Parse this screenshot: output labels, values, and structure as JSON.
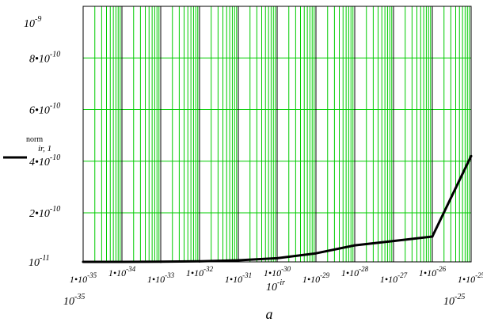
{
  "chart_data": {
    "type": "line",
    "x_scale": "log",
    "y_scale": "linear",
    "grid": true,
    "grid_color": "#00cc00",
    "major_grid_color": "#000000",
    "line_color": "#000000",
    "xlim": [
      1e-35,
      1e-25
    ],
    "ylim": [
      1e-11,
      1e-09
    ],
    "x_tick_labels": [
      {
        "mant": "1•10",
        "exp": "-35"
      },
      {
        "mant": "1•10",
        "exp": "-34"
      },
      {
        "mant": "1•10",
        "exp": "-33"
      },
      {
        "mant": "1•10",
        "exp": "-32"
      },
      {
        "mant": "1•10",
        "exp": "-31"
      },
      {
        "mant": "1•10",
        "exp": "-30"
      },
      {
        "mant": "1•10",
        "exp": "-29"
      },
      {
        "mant": "1•10",
        "exp": "-28"
      },
      {
        "mant": "1•10",
        "exp": "-27"
      },
      {
        "mant": "1•10",
        "exp": "-26"
      },
      {
        "mant": "1•10",
        "exp": "-25"
      }
    ],
    "x_range_labels": {
      "min": {
        "mant": "10",
        "exp": "-35"
      },
      "max": {
        "mant": "10",
        "exp": "-25"
      },
      "var": {
        "mant": "10",
        "exp": "-ir"
      }
    },
    "y_tick_labels": [
      {
        "value": 2e-10,
        "mant": "2•10",
        "exp": "-10"
      },
      {
        "value": 4e-10,
        "mant": "4•10",
        "exp": "-10"
      },
      {
        "value": 6e-10,
        "mant": "6•10",
        "exp": "-10"
      },
      {
        "value": 8e-10,
        "mant": "8•10",
        "exp": "-10"
      }
    ],
    "y_range_labels": {
      "min": {
        "mant": "10",
        "exp": "-11"
      },
      "max": {
        "mant": "10",
        "exp": "-9"
      }
    },
    "y_series_label": {
      "top": "norm",
      "sub": "ir, 1"
    },
    "caption": "a",
    "series": [
      {
        "x": [
          1e-35,
          1e-34,
          1e-33,
          1e-32,
          1e-31,
          1e-30,
          1e-29,
          1e-28,
          1e-27,
          1e-26,
          1e-25
        ],
        "y": [
          1e-11,
          1e-11,
          1.05e-11,
          1.2e-11,
          1.6e-11,
          2.4e-11,
          4.3e-11,
          7.4e-11,
          9.1e-11,
          1.08e-10,
          4.2e-10
        ]
      }
    ]
  }
}
